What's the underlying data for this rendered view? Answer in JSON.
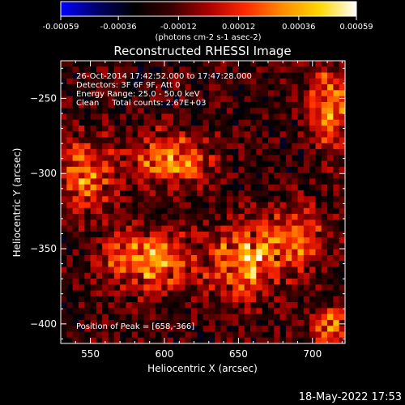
{
  "chart_data": {
    "type": "heatmap",
    "title": "Reconstructed RHESSI Image",
    "xlabel": "Heliocentric X (arcsec)",
    "ylabel": "Heliocentric Y (arcsec)",
    "xlim": [
      530,
      722
    ],
    "ylim": [
      -413,
      -225
    ],
    "xticks": [
      550,
      600,
      650,
      700
    ],
    "yticks": [
      -250,
      -300,
      -350,
      -400
    ],
    "colorbar": {
      "range": [
        -0.00059,
        0.00059
      ],
      "ticks": [
        "-0.00059",
        "-0.00036",
        "-0.00012",
        "0.00012",
        "0.00036",
        "0.00059"
      ],
      "unit_label": "(photons cm-2 s-1 asec-2)",
      "colors": [
        "#0000ff",
        "#000066",
        "#000000",
        "#3a0000",
        "#aa0000",
        "#ff2a00",
        "#ff8c00",
        "#ffd700",
        "#ffffff"
      ]
    },
    "annotations": [
      "26-Oct-2014 17:42:52.000 to 17:47:28.000",
      "Detectors: 3F 6F 9F, Att 0",
      "Energy Range: 25.0 - 50.0 keV",
      "Clean     Total counts: 2.67E+03"
    ],
    "peak_label": "Position of Peak = [658,-366]",
    "peak": [
      658,
      -366
    ],
    "sources": [
      {
        "x": 548,
        "y": -300,
        "sx": 12,
        "sy": 16,
        "amp": 0.00045
      },
      {
        "x": 604,
        "y": -290,
        "sx": 18,
        "sy": 12,
        "amp": 0.00052
      },
      {
        "x": 713,
        "y": -255,
        "sx": 10,
        "sy": 20,
        "amp": 0.00048
      },
      {
        "x": 590,
        "y": -358,
        "sx": 22,
        "sy": 14,
        "amp": 0.0005
      },
      {
        "x": 655,
        "y": -358,
        "sx": 16,
        "sy": 16,
        "amp": 0.00059
      },
      {
        "x": 690,
        "y": -342,
        "sx": 14,
        "sy": 14,
        "amp": 0.0004
      },
      {
        "x": 712,
        "y": -403,
        "sx": 10,
        "sy": 10,
        "amp": 0.00045
      }
    ]
  },
  "footer": {
    "timestamp": "18-May-2022 17:53"
  }
}
